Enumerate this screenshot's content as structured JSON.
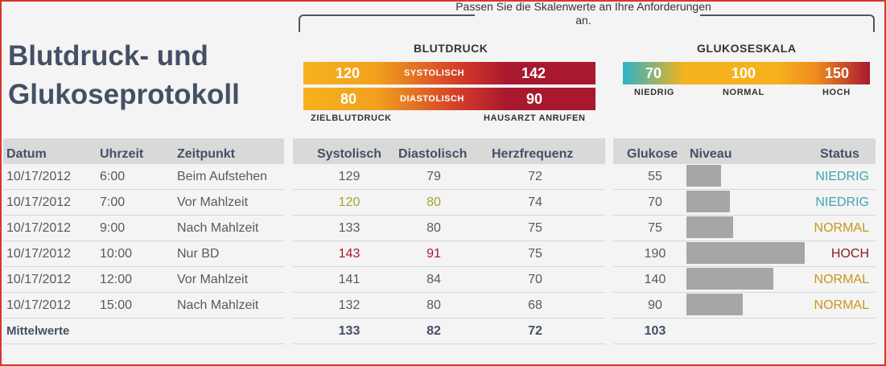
{
  "title": "Blutdruck- und Glukoseprotokoll",
  "note": "Passen Sie die Skalenwerte an Ihre Anforderungen an.",
  "bp_scale": {
    "label": "BLUTDRUCK",
    "systolic": {
      "low": "120",
      "label": "SYSTOLISCH",
      "high": "142"
    },
    "diastolic": {
      "low": "80",
      "label": "DIASTOLISCH",
      "high": "90"
    },
    "caption_left": "ZIELBLUTDRUCK",
    "caption_right": "HAUSARZT ANRUFEN"
  },
  "glucose_scale": {
    "label": "GLUKOSESKALA",
    "low": "70",
    "normal": "100",
    "high": "150",
    "low_label": "NIEDRIG",
    "normal_label": "NORMAL",
    "high_label": "HOCH"
  },
  "colors": {
    "low": "#3ea4b4",
    "normal": "#c9961a",
    "high": "#8a1c2e",
    "accent": "#d8352f"
  },
  "headers": {
    "datum": "Datum",
    "uhrzeit": "Uhrzeit",
    "zeitpunkt": "Zeitpunkt",
    "systolisch": "Systolisch",
    "diastolisch": "Diastolisch",
    "herzfrequenz": "Herzfrequenz",
    "glukose": "Glukose",
    "niveau": "Niveau",
    "status": "Status"
  },
  "rows": [
    {
      "datum": "10/17/2012",
      "uhrzeit": "6:00",
      "zeitpunkt": "Beim Aufstehen",
      "sys": "129",
      "dia": "79",
      "hf": "72",
      "glu": "55",
      "level": 55,
      "status": "NIEDRIG",
      "status_class": "s-low",
      "bp_class": ""
    },
    {
      "datum": "10/17/2012",
      "uhrzeit": "7:00",
      "zeitpunkt": "Vor Mahlzeit",
      "sys": "120",
      "dia": "80",
      "hf": "74",
      "glu": "70",
      "level": 70,
      "status": "NIEDRIG",
      "status_class": "s-low",
      "bp_class": "v-low"
    },
    {
      "datum": "10/17/2012",
      "uhrzeit": "9:00",
      "zeitpunkt": "Nach Mahlzeit",
      "sys": "133",
      "dia": "80",
      "hf": "75",
      "glu": "75",
      "level": 75,
      "status": "NORMAL",
      "status_class": "s-norm",
      "bp_class": ""
    },
    {
      "datum": "10/17/2012",
      "uhrzeit": "10:00",
      "zeitpunkt": "Nur BD",
      "sys": "143",
      "dia": "91",
      "hf": "75",
      "glu": "190",
      "level": 190,
      "status": "HOCH",
      "status_class": "s-high",
      "bp_class": "v-high"
    },
    {
      "datum": "10/17/2012",
      "uhrzeit": "12:00",
      "zeitpunkt": "Vor Mahlzeit",
      "sys": "141",
      "dia": "84",
      "hf": "70",
      "glu": "140",
      "level": 140,
      "status": "NORMAL",
      "status_class": "s-norm",
      "bp_class": ""
    },
    {
      "datum": "10/17/2012",
      "uhrzeit": "15:00",
      "zeitpunkt": "Nach Mahlzeit",
      "sys": "132",
      "dia": "80",
      "hf": "68",
      "glu": "90",
      "level": 90,
      "status": "NORMAL",
      "status_class": "s-norm",
      "bp_class": ""
    }
  ],
  "glucose_level_max": 190,
  "averages": {
    "label": "Mittelwerte",
    "sys": "133",
    "dia": "82",
    "hf": "72",
    "glu": "103"
  }
}
